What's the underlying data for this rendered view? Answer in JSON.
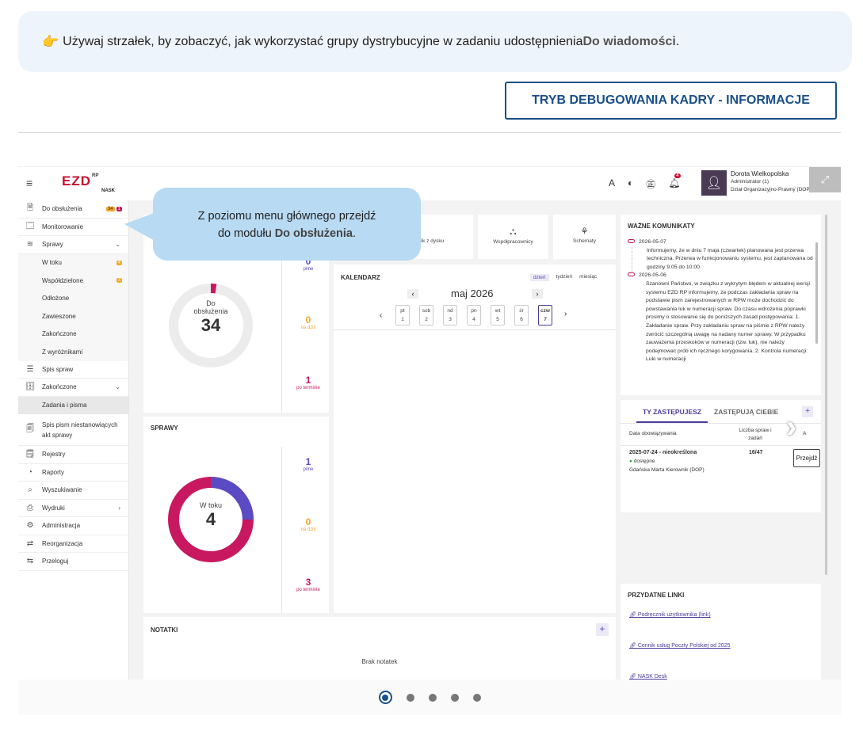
{
  "hint": {
    "emoji": "👉",
    "text": "Używaj strzałek, by zobaczyć, jak wykorzystać grupy dystrybucyjne w zadaniu udostępnienia ",
    "bold": "Do wiadomości",
    "end": "."
  },
  "debug_button": "TRYB DEBUGOWANIA KADRY - INFORMACJE",
  "app": {
    "logo": "EZD",
    "logo_sup": "RP",
    "logo_sub": "NASK",
    "topbar": {
      "font_icon": "A",
      "contrast_icon": "◐",
      "lang_icon": "㊣",
      "bell_count": "4"
    },
    "user": {
      "name": "Dorota Wielkopolska",
      "role": "Administrator (1)",
      "dept": "Dział Organizacyjno-Prawny (DOP)"
    },
    "sidebar": [
      {
        "icon": "doc-icon",
        "glyph": "🗎",
        "label": "Do obsłużenia",
        "badge1": "34",
        "badge2": "1"
      },
      {
        "icon": "monitor-icon",
        "glyph": "🗔",
        "label": "Monitorowanie"
      },
      {
        "icon": "layers-icon",
        "glyph": "≋",
        "label": "Sprawy",
        "arrow": "⌄"
      },
      {
        "sub": true,
        "label": "W toku",
        "badge1": "4"
      },
      {
        "sub": true,
        "label": "Współdzielone",
        "badge1": "3"
      },
      {
        "sub": true,
        "label": "Odłożone"
      },
      {
        "sub": true,
        "label": "Zawieszone"
      },
      {
        "sub": true,
        "label": "Zakończone"
      },
      {
        "sub": true,
        "label": "Z wyróżnikami"
      },
      {
        "icon": "list-icon",
        "glyph": "☰",
        "label": "Spis spraw"
      },
      {
        "icon": "archive-icon",
        "glyph": "🗄",
        "label": "Zakończone",
        "arrow": "⌄"
      },
      {
        "sub": true,
        "active": true,
        "label": "Zadania i pisma"
      },
      {
        "icon": "docs-icon",
        "glyph": "🗐",
        "label": "Spis pism niestanowiących akt sprawy",
        "tall": true
      },
      {
        "icon": "register-icon",
        "glyph": "🗒",
        "label": "Rejestry"
      },
      {
        "icon": "report-icon",
        "glyph": "◔",
        "label": "Raporty"
      },
      {
        "icon": "search-icon",
        "glyph": "⌕",
        "label": "Wyszukiwanie"
      },
      {
        "icon": "print-icon",
        "glyph": "⎙",
        "label": "Wydruki",
        "arrow": "›"
      },
      {
        "icon": "gear-icon",
        "glyph": "⚙",
        "label": "Administracja"
      },
      {
        "icon": "reorg-icon",
        "glyph": "⇄",
        "label": "Reorganizacja"
      },
      {
        "icon": "switch-user-icon",
        "glyph": "⇆",
        "label": "Przeloguj"
      }
    ],
    "do_obsluzenia": {
      "label1": "Do",
      "label2": "obsłużenia",
      "value": "34",
      "pilne": "0",
      "pilne_label": "pilne",
      "na_dzis": "0",
      "na_dzis_label": "na dziś",
      "po_terminie": "1",
      "po_terminie_label": "po terminie"
    },
    "sprawy": {
      "title": "SPRAWY",
      "label": "W toku",
      "value": "4",
      "pilne": "1",
      "pilne_label": "pilne",
      "na_dzis": "0",
      "na_dzis_label": "na dziś",
      "po_terminie": "3",
      "po_terminie_label": "po terminie"
    },
    "quick": [
      {
        "icon": "upload-icon",
        "glyph": "⇪",
        "label": "Dodaj plik z dysku"
      },
      {
        "icon": "people-icon",
        "glyph": "⛬",
        "label": "Współpracownicy"
      },
      {
        "icon": "schema-icon",
        "glyph": "⚘",
        "label": "Schematy"
      }
    ],
    "calendar": {
      "title": "KALENDARZ",
      "tabs": [
        "dzień",
        "tydzień",
        "miesiąc"
      ],
      "month": "maj 2026",
      "prev": "‹",
      "next": "›",
      "days": [
        {
          "d": "pt",
          "n": "1"
        },
        {
          "d": "sob",
          "n": "2"
        },
        {
          "d": "nd",
          "n": "3"
        },
        {
          "d": "pn",
          "n": "4"
        },
        {
          "d": "wt",
          "n": "5"
        },
        {
          "d": "śr",
          "n": "6"
        },
        {
          "d": "czw",
          "n": "7",
          "today": true
        }
      ]
    },
    "notatki": {
      "title": "NOTATKI",
      "empty": "Brak notatek",
      "add": "+"
    },
    "komunikaty": {
      "title": "WAŻNE KOMUNIKATY",
      "items": [
        {
          "date": "2026-05-07",
          "text": "Informujemy, że w dniu 7 maja (czwartek) planowana jest przerwa techniczna. Przerwa w funkcjonowaniu systemu, jest zaplanowana od godziny 9.05 do 10:00."
        },
        {
          "date": "2026-05-06",
          "text": "Szanowni Państwo, w związku z wykrytym błędem w aktualnej wersji systemu EZD RP informujemy, że podczas zakładania spraw na podstawie pism zarejestrowanych w RPW może dochodzić do powstawania luk w numeracji spraw. Do czasu wdrożenia poprawki prosimy o stosowanie się do poniższych zasad postępowania: 1. Zakładanie spraw. Przy zakładaniu spraw na piśmie z RPW należy zwrócić szczególną uwagę na nadany numer sprawy. W przypadku zauważenia przeskoków w numeracji (tzw. luk), nie należy podejmować prób ich ręcznego korygowania. 2. Kontrola numeracji: Luki w numeracji"
        }
      ]
    },
    "zastepstwa": {
      "tab1": "TY ZASTĘPUJESZ",
      "tab2": "ZASTĘPUJĄ CIEBIE",
      "add": "+",
      "col1": "Data obowiązywania",
      "col2a": "Liczba spraw i",
      "col2b": "zadań",
      "col3": "A",
      "row": {
        "date": "2025-07-24 - nieokreślona",
        "status": "dostępne",
        "person": "Gdańska Marta Kierownik (DOP)",
        "count": "16/47",
        "btn": "Przejdź"
      }
    },
    "linki": {
      "title": "PRZYDATNE LINKI",
      "items": [
        "Podręcznik użytkownika (link)",
        "Cennik usług Poczty Polskiej od 2025",
        "NASK Desk"
      ]
    }
  },
  "callout": {
    "line1": "Z poziomu menu głównego przejdź",
    "line2_pre": "do modułu ",
    "line2_bold": "Do obsłużenia",
    "line2_post": "."
  },
  "colors": {
    "accent": "#1a4f8a",
    "magenta": "#c8185f",
    "purple": "#5a4bc4",
    "orange": "#f5a623",
    "callout": "#b8daf3"
  },
  "carousel": {
    "slides": 5,
    "active": 1
  }
}
